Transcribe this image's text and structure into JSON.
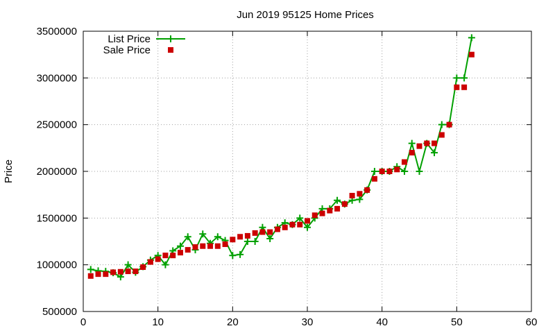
{
  "chart_data": {
    "type": "line",
    "title": "Jun 2019 95125 Home Prices",
    "xlabel": "",
    "ylabel": "Price",
    "xlim": [
      0,
      60
    ],
    "ylim": [
      500000,
      3500000
    ],
    "xticks": [
      0,
      10,
      20,
      30,
      40,
      50,
      60
    ],
    "yticks": [
      500000,
      1000000,
      1500000,
      2000000,
      2500000,
      3000000,
      3500000
    ],
    "xtick_labels": [
      "0",
      "10",
      "20",
      "30",
      "40",
      "50",
      "60"
    ],
    "ytick_labels": [
      "500000",
      "1000000",
      "1500000",
      "2000000",
      "2500000",
      "3000000",
      "3500000"
    ],
    "grid": true,
    "legend_position": "top-left",
    "series": [
      {
        "name": "List Price",
        "style": "line-plus",
        "color": "#00a000",
        "x": [
          1,
          2,
          3,
          4,
          5,
          6,
          7,
          8,
          9,
          10,
          11,
          12,
          13,
          14,
          15,
          16,
          17,
          18,
          19,
          20,
          21,
          22,
          23,
          24,
          25,
          26,
          27,
          28,
          29,
          30,
          31,
          32,
          33,
          34,
          35,
          36,
          37,
          38,
          39,
          40,
          41,
          42,
          43,
          44,
          45,
          46,
          47,
          48,
          49,
          50,
          51,
          52
        ],
        "values": [
          950000,
          935000,
          930000,
          915000,
          870000,
          1000000,
          920000,
          980000,
          1050000,
          1100000,
          1000000,
          1150000,
          1200000,
          1300000,
          1160000,
          1330000,
          1230000,
          1300000,
          1260000,
          1100000,
          1110000,
          1250000,
          1250000,
          1400000,
          1280000,
          1400000,
          1450000,
          1430000,
          1500000,
          1400000,
          1500000,
          1600000,
          1600000,
          1690000,
          1650000,
          1690000,
          1700000,
          1800000,
          2000000,
          2000000,
          2000000,
          2050000,
          2000000,
          2300000,
          2000000,
          2300000,
          2200000,
          2500000,
          2500000,
          3000000,
          3000000,
          3430000
        ]
      },
      {
        "name": "Sale Price",
        "style": "square",
        "color": "#cc0000",
        "x": [
          1,
          2,
          3,
          4,
          5,
          6,
          7,
          8,
          9,
          10,
          11,
          12,
          13,
          14,
          15,
          16,
          17,
          18,
          19,
          20,
          21,
          22,
          23,
          24,
          25,
          26,
          27,
          28,
          29,
          30,
          31,
          32,
          33,
          34,
          35,
          36,
          37,
          38,
          39,
          40,
          41,
          42,
          43,
          44,
          45,
          46,
          47,
          48,
          49,
          50,
          51,
          52
        ],
        "values": [
          880000,
          900000,
          900000,
          920000,
          925000,
          930000,
          930000,
          975000,
          1030000,
          1060000,
          1100000,
          1100000,
          1130000,
          1160000,
          1190000,
          1200000,
          1200000,
          1200000,
          1220000,
          1270000,
          1300000,
          1310000,
          1340000,
          1350000,
          1350000,
          1380000,
          1400000,
          1430000,
          1430000,
          1470000,
          1530000,
          1550000,
          1580000,
          1600000,
          1650000,
          1740000,
          1760000,
          1800000,
          1920000,
          2000000,
          2000000,
          2020000,
          2100000,
          2200000,
          2270000,
          2300000,
          2300000,
          2390000,
          2500000,
          2900000,
          2900000,
          3250000
        ]
      }
    ]
  }
}
